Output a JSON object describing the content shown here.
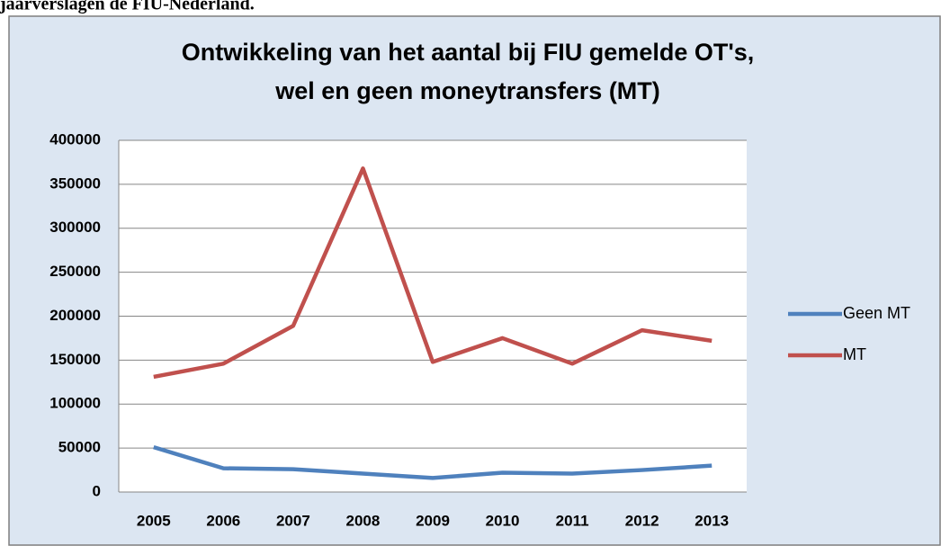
{
  "caption": "jaarverslagen de FIU-Nederland.",
  "chart_data": {
    "type": "line",
    "title": [
      "Ontwikkeling van het aantal bij FIU gemelde OT's,",
      "wel en geen moneytransfers (MT)"
    ],
    "categories": [
      "2005",
      "2006",
      "2007",
      "2008",
      "2009",
      "2010",
      "2011",
      "2012",
      "2013"
    ],
    "series": [
      {
        "name": "Geen MT",
        "color": "#4f81bd",
        "values": [
          51000,
          27000,
          26000,
          21000,
          16000,
          22000,
          21000,
          25000,
          30000
        ]
      },
      {
        "name": "MT",
        "color": "#c0504d",
        "values": [
          131000,
          146000,
          189000,
          368000,
          148000,
          175000,
          146000,
          184000,
          172000
        ]
      }
    ],
    "ylim": [
      0,
      400000
    ],
    "yticks": [
      0,
      50000,
      100000,
      150000,
      200000,
      250000,
      300000,
      350000,
      400000
    ],
    "grid": true,
    "legend": "right"
  }
}
